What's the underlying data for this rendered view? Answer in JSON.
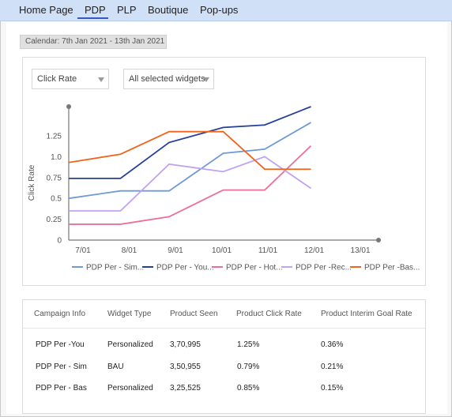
{
  "nav": {
    "tabs": [
      "Home Page",
      "PDP",
      "PLP",
      "Boutique",
      "Pop-ups"
    ],
    "active": "PDP"
  },
  "calendar": {
    "label": "Calendar: 7th Jan 2021 - 13th Jan 2021"
  },
  "filters": {
    "metric": "Click Rate",
    "widgets": "All selected widgets"
  },
  "chart_data": {
    "type": "line",
    "title": "",
    "xlabel": "",
    "ylabel": "Click Rate",
    "categories": [
      "7/01",
      "8/01",
      "9/01",
      "10/01",
      "11/01",
      "12/01",
      "13/01"
    ],
    "yticks": [
      0,
      0.25,
      0.5,
      0.75,
      1.0,
      1.25
    ],
    "ytick_labels": [
      "0",
      "0.25",
      "0.5",
      "0.75",
      "1.0",
      "1.25"
    ],
    "ylim": [
      0,
      1.6
    ],
    "grid": false,
    "legend_position": "bottom",
    "series": [
      {
        "name": "PDP Per - Sim...",
        "color": "#6f9ad6",
        "values": [
          0.5,
          0.59,
          0.59,
          1.04,
          1.09,
          1.41,
          null
        ],
        "x_start": 0
      },
      {
        "name": "PDP Per - You...",
        "color": "#24409a",
        "values": [
          0.74,
          0.74,
          1.17,
          1.35,
          1.38,
          1.6,
          null
        ],
        "x_start": 0
      },
      {
        "name": "PDP Per - Hot...",
        "color": "#ec6f9a",
        "values": [
          0.19,
          0.19,
          0.28,
          0.6,
          0.6,
          1.13,
          null
        ],
        "x_start": 0
      },
      {
        "name": "PDP Per -Rec...",
        "color": "#c0a3f2",
        "values": [
          0.35,
          0.35,
          0.91,
          0.82,
          1.0,
          0.62,
          null
        ],
        "x_start": 0
      },
      {
        "name": "PDP Per -Bas...",
        "color": "#f0651c",
        "values": [
          0.93,
          1.03,
          1.3,
          1.3,
          0.85,
          0.85,
          null
        ],
        "x_start": 0
      }
    ]
  },
  "table": {
    "columns": [
      "Campaign Info",
      "Widget Type",
      "Product Seen",
      "Product Click Rate",
      "Product Interim Goal Rate"
    ],
    "rows": [
      [
        "PDP Per -You",
        "Personalized",
        "3,70,995",
        "1.25%",
        "0.36%"
      ],
      [
        "PDP Per - Sim",
        "BAU",
        "3,50,955",
        "0.79%",
        "0.21%"
      ],
      [
        "PDP Per - Bas",
        "Personalized",
        "3,25,525",
        "0.85%",
        "0.15%"
      ]
    ]
  }
}
